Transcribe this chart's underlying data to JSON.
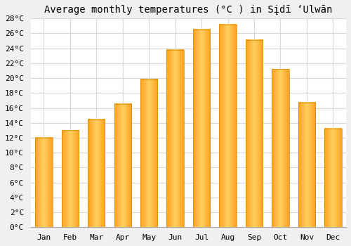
{
  "title": "Average monthly temperatures (°C ) in Sįdī ‘Ulwān",
  "months": [
    "Jan",
    "Feb",
    "Mar",
    "Apr",
    "May",
    "Jun",
    "Jul",
    "Aug",
    "Sep",
    "Oct",
    "Nov",
    "Dec"
  ],
  "values": [
    12.0,
    13.0,
    14.5,
    16.5,
    19.8,
    23.8,
    26.5,
    27.2,
    25.1,
    21.2,
    16.7,
    13.2
  ],
  "bar_color_light": "#FFD060",
  "bar_color_dark": "#FFA020",
  "ylim": [
    0,
    28
  ],
  "yticks": [
    0,
    2,
    4,
    6,
    8,
    10,
    12,
    14,
    16,
    18,
    20,
    22,
    24,
    26,
    28
  ],
  "background_color": "#f0f0f0",
  "plot_bg_color": "#ffffff",
  "grid_color": "#d8d8d8",
  "title_fontsize": 10,
  "tick_fontsize": 8,
  "bar_width": 0.65
}
